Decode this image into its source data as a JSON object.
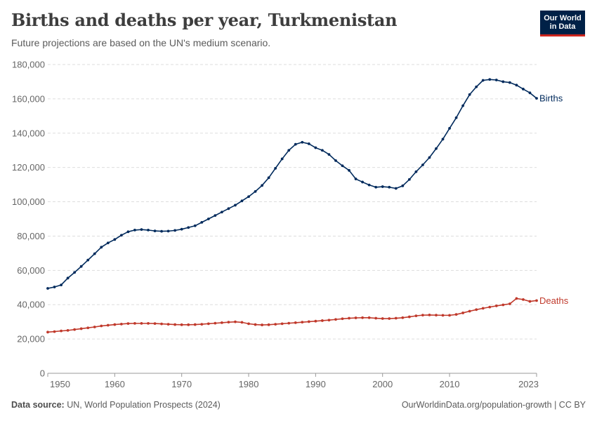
{
  "header": {
    "title": "Births and deaths per year, Turkmenistan",
    "subtitle": "Future projections are based on the UN's medium scenario."
  },
  "logo": {
    "line1": "Our World",
    "line2": "in Data"
  },
  "footer": {
    "source_label": "Data source:",
    "source_text": "UN, World Population Prospects (2024)",
    "link_text": "OurWorldinData.org/population-growth | CC BY"
  },
  "colors": {
    "births": "#002a5c",
    "deaths": "#c0392b",
    "grid": "#dddddd",
    "text": "#666666",
    "brand_bg": "#002147",
    "brand_accent": "#ce261e"
  },
  "chart_data": {
    "type": "line",
    "title": "Births and deaths per year, Turkmenistan",
    "subtitle": "Future projections are based on the UN's medium scenario.",
    "xlim": [
      1950,
      2023
    ],
    "ylim": [
      0,
      180000
    ],
    "x_ticks": [
      1950,
      1960,
      1970,
      1980,
      1990,
      2000,
      2010,
      2023
    ],
    "y_ticks": [
      0,
      20000,
      40000,
      60000,
      80000,
      100000,
      120000,
      140000,
      160000,
      180000
    ],
    "y_tick_labels": [
      "0",
      "20,000",
      "40,000",
      "60,000",
      "80,000",
      "100,000",
      "120,000",
      "140,000",
      "160,000",
      "180,000"
    ],
    "grid": "horizontal dashed",
    "legend": "inline labels at line ends (right)",
    "x": [
      1950,
      1951,
      1952,
      1953,
      1954,
      1955,
      1956,
      1957,
      1958,
      1959,
      1960,
      1961,
      1962,
      1963,
      1964,
      1965,
      1966,
      1967,
      1968,
      1969,
      1970,
      1971,
      1972,
      1973,
      1974,
      1975,
      1976,
      1977,
      1978,
      1979,
      1980,
      1981,
      1982,
      1983,
      1984,
      1985,
      1986,
      1987,
      1988,
      1989,
      1990,
      1991,
      1992,
      1993,
      1994,
      1995,
      1996,
      1997,
      1998,
      1999,
      2000,
      2001,
      2002,
      2003,
      2004,
      2005,
      2006,
      2007,
      2008,
      2009,
      2010,
      2011,
      2012,
      2013,
      2014,
      2015,
      2016,
      2017,
      2018,
      2019,
      2020,
      2021,
      2022,
      2023
    ],
    "series": [
      {
        "name": "Births",
        "values": [
          49500,
          50300,
          51500,
          55500,
          58800,
          62300,
          66000,
          69700,
          73500,
          76000,
          78000,
          80500,
          82500,
          83500,
          83800,
          83500,
          83000,
          82800,
          82900,
          83300,
          84000,
          85000,
          86000,
          88000,
          90000,
          92000,
          94000,
          96000,
          98000,
          100500,
          103000,
          106000,
          109500,
          114000,
          119500,
          125000,
          130000,
          133500,
          134700,
          133800,
          131500,
          130000,
          127600,
          124000,
          121000,
          118300,
          113300,
          111500,
          109800,
          108500,
          108800,
          108500,
          107800,
          109300,
          113000,
          117500,
          121500,
          125800,
          131000,
          136500,
          142800,
          149000,
          156000,
          162500,
          167000,
          170800,
          171300,
          171000,
          170000,
          169500,
          168000,
          165700,
          163500,
          160300
        ]
      },
      {
        "name": "Deaths",
        "values": [
          24000,
          24300,
          24700,
          25000,
          25500,
          26000,
          26500,
          27000,
          27600,
          28000,
          28400,
          28700,
          29000,
          29100,
          29100,
          29100,
          29000,
          28800,
          28600,
          28400,
          28300,
          28300,
          28400,
          28600,
          28900,
          29200,
          29500,
          29800,
          30000,
          29700,
          28900,
          28400,
          28200,
          28300,
          28600,
          28900,
          29200,
          29500,
          29800,
          30100,
          30400,
          30700,
          31000,
          31400,
          31800,
          32100,
          32300,
          32400,
          32400,
          32100,
          31900,
          31900,
          32100,
          32400,
          32900,
          33500,
          33900,
          34000,
          33900,
          33800,
          33800,
          34300,
          35200,
          36200,
          37100,
          37900,
          38600,
          39300,
          39900,
          40500,
          43600,
          43000,
          41900,
          42400
        ]
      }
    ]
  }
}
